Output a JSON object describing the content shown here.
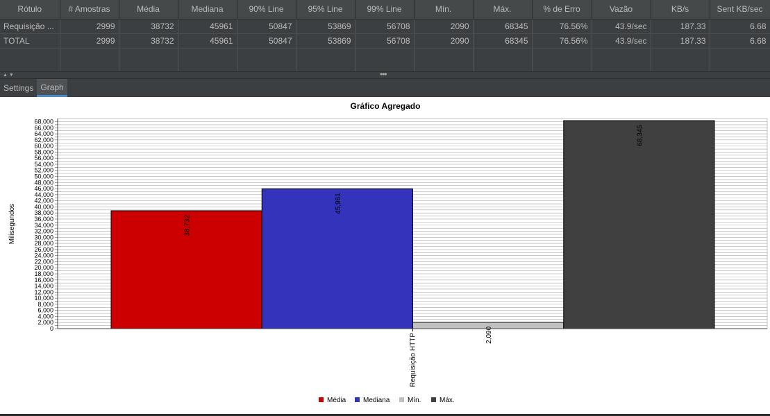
{
  "table": {
    "columns": [
      "Rótulo",
      "# Amostras",
      "Média",
      "Mediana",
      "90% Line",
      "95% Line",
      "99% Line",
      "Mín.",
      "Máx.",
      "% de Erro",
      "Vazão",
      "KB/s",
      "Sent KB/sec"
    ],
    "rows": [
      [
        "Requisição ...",
        "2999",
        "38732",
        "45961",
        "50847",
        "53869",
        "56708",
        "2090",
        "68345",
        "76.56%",
        "43.9/sec",
        "187.33",
        "6.68"
      ],
      [
        "TOTAL",
        "2999",
        "38732",
        "45961",
        "50847",
        "53869",
        "56708",
        "2090",
        "68345",
        "76.56%",
        "43.9/sec",
        "187.33",
        "6.68"
      ]
    ]
  },
  "tabs": [
    {
      "label": "Settings",
      "active": false
    },
    {
      "label": "Graph",
      "active": true
    }
  ],
  "chart_data": {
    "type": "bar",
    "title": "Gráfico Agregado",
    "ylabel": "Milisegundos",
    "xlabel": "",
    "categories": [
      "Requisição HTTP"
    ],
    "ylim": [
      0,
      68345
    ],
    "grid": true,
    "legend_position": "bottom",
    "series": [
      {
        "name": "Média",
        "values": [
          38732
        ],
        "label": "38,732",
        "color": "#cc0000"
      },
      {
        "name": "Mediana",
        "values": [
          45961
        ],
        "label": "45,961",
        "color": "#3333bb"
      },
      {
        "name": "Mín.",
        "values": [
          2090
        ],
        "label": "2,090",
        "color": "#c0c0c0"
      },
      {
        "name": "Máx.",
        "values": [
          68345
        ],
        "label": "68,345",
        "color": "#404040"
      }
    ]
  }
}
